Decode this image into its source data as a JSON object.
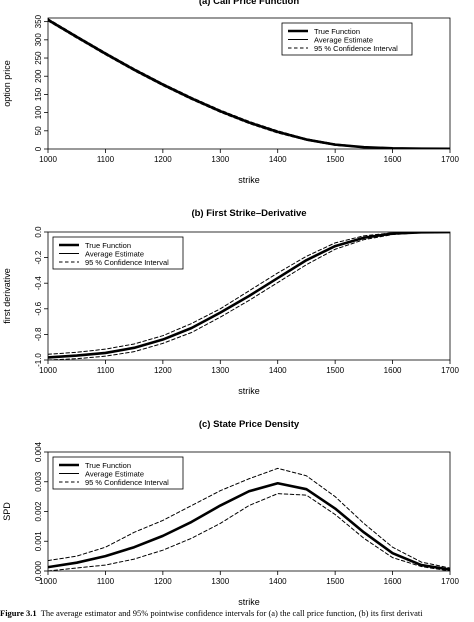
{
  "caption": {
    "label": "Figure 3.1",
    "text": "The average estimator and 95% pointwise confidence intervals for (a) the call price function, (b) its first derivati"
  },
  "chart_data": [
    {
      "type": "line",
      "title": "(a)  Call Price Function",
      "xlabel": "strike",
      "ylabel": "option price",
      "xlim": [
        1000,
        1700
      ],
      "ylim": [
        0,
        360
      ],
      "xticks": [
        "1000",
        "1100",
        "1200",
        "1300",
        "1400",
        "1500",
        "1600",
        "1700"
      ],
      "yticks": [
        "0",
        "50",
        "100",
        "150",
        "200",
        "250",
        "300",
        "350"
      ],
      "legend": {
        "position": "top-right",
        "entries": [
          "True  Function",
          "Average  Estimate",
          "95 %  Confidence  Interval"
        ]
      },
      "x": [
        1000,
        1050,
        1100,
        1150,
        1200,
        1250,
        1300,
        1350,
        1400,
        1450,
        1500,
        1550,
        1600,
        1650,
        1700
      ],
      "series": [
        {
          "name": "True  Function",
          "style": "thick-solid",
          "values": [
            355,
            308,
            262,
            218,
            177,
            139,
            104,
            73,
            47,
            26,
            12,
            5,
            2,
            1,
            0.5
          ]
        },
        {
          "name": "Average  Estimate",
          "style": "thin-solid",
          "values": [
            355,
            308,
            262,
            218,
            177,
            139,
            104,
            73,
            47,
            26,
            12,
            5,
            2,
            1,
            0.5
          ]
        },
        {
          "name": "95 %  Confidence  Interval",
          "style": "dashed",
          "values": [
            358,
            311,
            265,
            221,
            180,
            142,
            107,
            76,
            50,
            28,
            14,
            6,
            2.5,
            1.2,
            0.8
          ]
        },
        {
          "name": "95 %  Confidence  Interval",
          "style": "dashed",
          "values": [
            352,
            305,
            259,
            215,
            174,
            136,
            101,
            70,
            44,
            24,
            10,
            4,
            1.5,
            0.8,
            0.3
          ]
        }
      ]
    },
    {
      "type": "line",
      "title": "(b)  First Strike–Derivative",
      "xlabel": "strike",
      "ylabel": "first derivative",
      "xlim": [
        1000,
        1700
      ],
      "ylim": [
        -1.0,
        0.0
      ],
      "xticks": [
        "1000",
        "1100",
        "1200",
        "1300",
        "1400",
        "1500",
        "1600",
        "1700"
      ],
      "yticks": [
        "-1.0",
        "-0.8",
        "-0.6",
        "-0.4",
        "-0.2",
        "0.0"
      ],
      "legend": {
        "position": "top-left",
        "entries": [
          "True  Function",
          "Average  Estimate",
          "95 %  Confidence  Interval"
        ]
      },
      "x": [
        1000,
        1050,
        1100,
        1150,
        1200,
        1250,
        1300,
        1350,
        1400,
        1450,
        1500,
        1550,
        1600,
        1650,
        1700
      ],
      "series": [
        {
          "name": "True  Function",
          "style": "thick-solid",
          "values": [
            -0.98,
            -0.965,
            -0.945,
            -0.905,
            -0.84,
            -0.75,
            -0.63,
            -0.5,
            -0.36,
            -0.22,
            -0.11,
            -0.045,
            -0.012,
            -0.003,
            -0.001
          ]
        },
        {
          "name": "Average  Estimate",
          "style": "thin-solid",
          "values": [
            -0.98,
            -0.965,
            -0.945,
            -0.905,
            -0.84,
            -0.75,
            -0.63,
            -0.5,
            -0.36,
            -0.22,
            -0.11,
            -0.045,
            -0.012,
            -0.003,
            -0.001
          ]
        },
        {
          "name": "95 %  Confidence  Interval",
          "style": "dashed",
          "values": [
            -0.955,
            -0.94,
            -0.915,
            -0.875,
            -0.81,
            -0.715,
            -0.6,
            -0.46,
            -0.32,
            -0.19,
            -0.085,
            -0.03,
            -0.006,
            -0.001,
            0.0
          ]
        },
        {
          "name": "95 %  Confidence  Interval",
          "style": "dashed",
          "values": [
            -1.0,
            -0.99,
            -0.97,
            -0.935,
            -0.87,
            -0.785,
            -0.665,
            -0.535,
            -0.395,
            -0.255,
            -0.135,
            -0.06,
            -0.02,
            -0.006,
            -0.002
          ]
        }
      ]
    },
    {
      "type": "line",
      "title": "(c)  State Price Density",
      "xlabel": "strike",
      "ylabel": "SPD",
      "xlim": [
        1000,
        1700
      ],
      "ylim": [
        0,
        0.004
      ],
      "xticks": [
        "1000",
        "1100",
        "1200",
        "1300",
        "1400",
        "1500",
        "1600",
        "1700"
      ],
      "yticks": [
        "0.000",
        "0.001",
        "0.002",
        "0.003",
        "0.004"
      ],
      "legend": {
        "position": "top-left",
        "entries": [
          "True  Function",
          "Average  Estimate",
          "95 %  Confidence  Interval"
        ]
      },
      "x": [
        1000,
        1050,
        1100,
        1150,
        1200,
        1250,
        1300,
        1350,
        1400,
        1450,
        1500,
        1550,
        1600,
        1650,
        1700
      ],
      "series": [
        {
          "name": "True  Function",
          "style": "thick-solid",
          "values": [
            0.00013,
            0.00028,
            0.0005,
            0.0008,
            0.00118,
            0.00165,
            0.0022,
            0.00268,
            0.00295,
            0.00275,
            0.0021,
            0.0013,
            0.0006,
            0.0002,
            5e-05
          ]
        },
        {
          "name": "Average  Estimate",
          "style": "thin-solid",
          "values": [
            0.00013,
            0.00028,
            0.0005,
            0.0008,
            0.00118,
            0.00165,
            0.0022,
            0.00268,
            0.00295,
            0.00275,
            0.0021,
            0.0013,
            0.0006,
            0.0002,
            5e-05
          ]
        },
        {
          "name": "95 %  Confidence  Interval",
          "style": "dashed",
          "values": [
            0.00035,
            0.0005,
            0.0008,
            0.0013,
            0.0017,
            0.0022,
            0.0027,
            0.0031,
            0.00345,
            0.0032,
            0.0025,
            0.0016,
            0.0008,
            0.0003,
            0.0001
          ]
        },
        {
          "name": "95 %  Confidence  Interval",
          "style": "dashed",
          "values": [
            0.0,
            0.0001,
            0.0002,
            0.0004,
            0.0007,
            0.0011,
            0.0016,
            0.0022,
            0.0026,
            0.00255,
            0.0019,
            0.0011,
            0.00045,
            0.00015,
            0.0
          ]
        }
      ]
    }
  ]
}
